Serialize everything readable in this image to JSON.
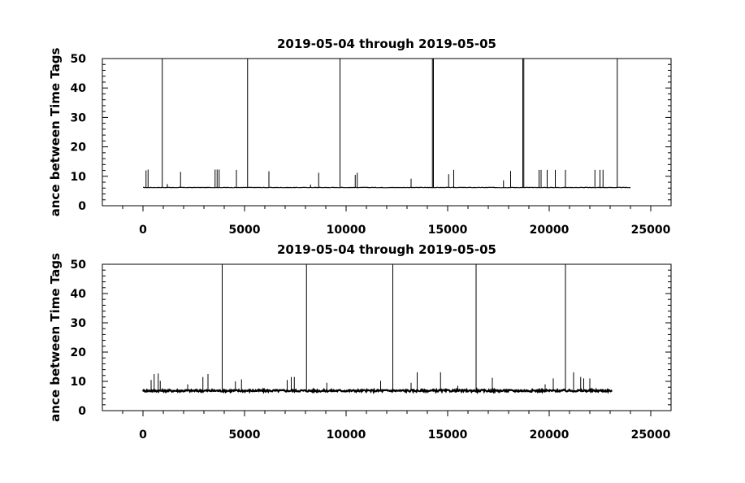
{
  "chart_data": [
    {
      "type": "line",
      "title": "2019-05-04 through 2019-05-05",
      "xlabel": "",
      "ylabel": "ance between Time Tags",
      "xlim": [
        -2000,
        26000
      ],
      "ylim": [
        0,
        50
      ],
      "xticks": [
        0,
        5000,
        10000,
        15000,
        20000,
        25000
      ],
      "yticks": [
        0,
        10,
        20,
        30,
        40,
        50
      ],
      "xtick_labels": [
        "0",
        "5000",
        "10000",
        "15000",
        "20000",
        "25000"
      ],
      "ytick_labels": [
        "0",
        "10",
        "20",
        "30",
        "40",
        "50"
      ],
      "grid": false,
      "baseline": {
        "x_start": 0,
        "x_end": 24000,
        "y": 6.2
      },
      "spikes": [
        {
          "x": 950,
          "y": 50
        },
        {
          "x": 5150,
          "y": 50
        },
        {
          "x": 9700,
          "y": 50
        },
        {
          "x": 14250,
          "y": 50
        },
        {
          "x": 14300,
          "y": 50
        },
        {
          "x": 18700,
          "y": 50
        },
        {
          "x": 18750,
          "y": 50
        },
        {
          "x": 23350,
          "y": 50
        },
        {
          "x": 150,
          "y": 12
        },
        {
          "x": 250,
          "y": 12.3
        },
        {
          "x": 1850,
          "y": 11.5
        },
        {
          "x": 3550,
          "y": 12.3
        },
        {
          "x": 3650,
          "y": 12.3
        },
        {
          "x": 3750,
          "y": 12.3
        },
        {
          "x": 4600,
          "y": 12.2
        },
        {
          "x": 6200,
          "y": 11.7
        },
        {
          "x": 8650,
          "y": 11.2
        },
        {
          "x": 10450,
          "y": 10.5
        },
        {
          "x": 10550,
          "y": 11.2
        },
        {
          "x": 13200,
          "y": 9.2
        },
        {
          "x": 15050,
          "y": 10.7
        },
        {
          "x": 15300,
          "y": 12.2
        },
        {
          "x": 18100,
          "y": 11.8
        },
        {
          "x": 19500,
          "y": 12.2
        },
        {
          "x": 19600,
          "y": 12.2
        },
        {
          "x": 19900,
          "y": 12.2
        },
        {
          "x": 20300,
          "y": 12.2
        },
        {
          "x": 20800,
          "y": 12.2
        },
        {
          "x": 22250,
          "y": 12.2
        },
        {
          "x": 22500,
          "y": 12.2
        },
        {
          "x": 22650,
          "y": 12.2
        },
        {
          "x": 17750,
          "y": 8.6
        },
        {
          "x": 8250,
          "y": 7.2
        },
        {
          "x": 1200,
          "y": 7.4
        }
      ]
    },
    {
      "type": "line",
      "title": "2019-05-04 through 2019-05-05",
      "xlabel": "",
      "ylabel": "ance between Time Tags",
      "xlim": [
        -2000,
        26000
      ],
      "ylim": [
        0,
        50
      ],
      "xticks": [
        0,
        5000,
        10000,
        15000,
        20000,
        25000
      ],
      "yticks": [
        0,
        10,
        20,
        30,
        40,
        50
      ],
      "xtick_labels": [
        "0",
        "5000",
        "10000",
        "15000",
        "20000",
        "25000"
      ],
      "ytick_labels": [
        "0",
        "10",
        "20",
        "30",
        "40",
        "50"
      ],
      "grid": false,
      "baseline": {
        "x_start": 0,
        "x_end": 23100,
        "y": 6.8
      },
      "spikes": [
        {
          "x": 3900,
          "y": 50
        },
        {
          "x": 8050,
          "y": 50
        },
        {
          "x": 12300,
          "y": 50
        },
        {
          "x": 16400,
          "y": 50
        },
        {
          "x": 20800,
          "y": 50
        },
        {
          "x": 400,
          "y": 10.5
        },
        {
          "x": 550,
          "y": 12.5
        },
        {
          "x": 750,
          "y": 12.7
        },
        {
          "x": 850,
          "y": 10.2
        },
        {
          "x": 2950,
          "y": 11.5
        },
        {
          "x": 3200,
          "y": 12.5
        },
        {
          "x": 4550,
          "y": 10
        },
        {
          "x": 4850,
          "y": 10.7
        },
        {
          "x": 7100,
          "y": 10.5
        },
        {
          "x": 7300,
          "y": 11.5
        },
        {
          "x": 7450,
          "y": 11.5
        },
        {
          "x": 9050,
          "y": 9.5
        },
        {
          "x": 11700,
          "y": 10.2
        },
        {
          "x": 13200,
          "y": 9.5
        },
        {
          "x": 13500,
          "y": 13.1
        },
        {
          "x": 14650,
          "y": 13.1
        },
        {
          "x": 17200,
          "y": 11.2
        },
        {
          "x": 20200,
          "y": 11
        },
        {
          "x": 21200,
          "y": 13.1
        },
        {
          "x": 21550,
          "y": 11.5
        },
        {
          "x": 21700,
          "y": 11
        },
        {
          "x": 22000,
          "y": 11
        },
        {
          "x": 19800,
          "y": 9
        },
        {
          "x": 15500,
          "y": 8.5
        },
        {
          "x": 2200,
          "y": 9
        }
      ]
    }
  ]
}
